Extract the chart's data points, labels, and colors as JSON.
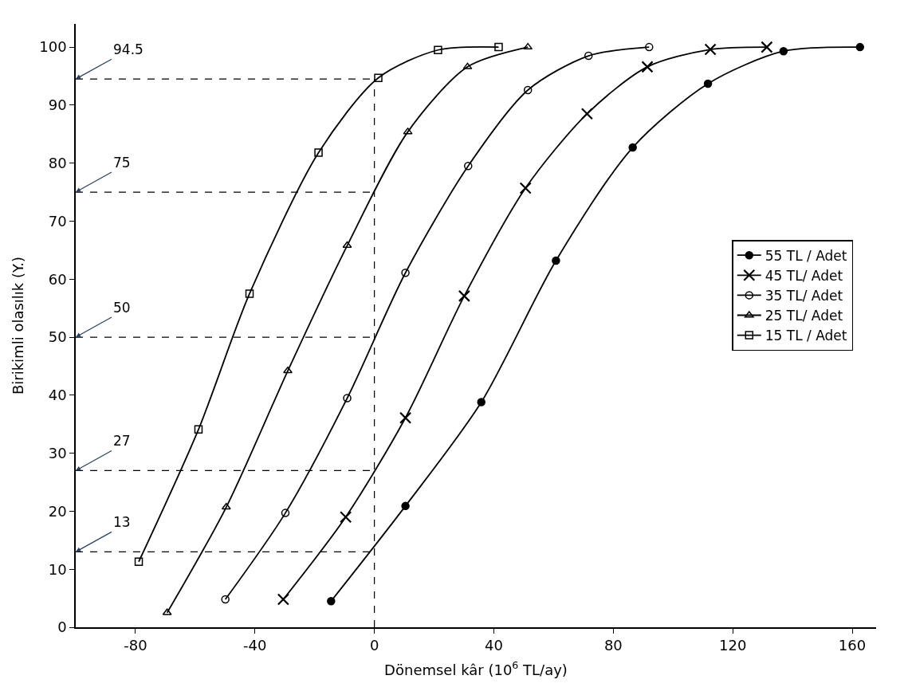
{
  "chart_data": {
    "type": "line",
    "xlabel": "Dönemsel kâr (10$^{6}$ TL/ay)",
    "ylabel": "Birikimli olasılık (Y.)",
    "xlim": [
      -100,
      168
    ],
    "xticks": [
      -80,
      -40,
      0,
      40,
      80,
      120,
      160
    ],
    "ylim": [
      0,
      104
    ],
    "yticks": [
      0,
      10,
      20,
      30,
      40,
      50,
      60,
      70,
      80,
      90,
      100
    ],
    "grid": false,
    "legend": "right",
    "line_style": "solid",
    "series": [
      {
        "name": "55 TL / Adet",
        "color": "#000000",
        "marker": "circle",
        "x": [
          -14.5,
          10.4,
          35.8,
          60.8,
          86.5,
          111.7,
          137,
          162.6
        ],
        "values": [
          4.5,
          20.9,
          38.8,
          63.2,
          82.7,
          93.7,
          99.3,
          100
        ]
      },
      {
        "name": "45 TL/ Adet",
        "color": "#000000",
        "marker": "cross",
        "x": [
          -30.5,
          -9.6,
          10.4,
          30.1,
          50.6,
          71.2,
          91.4,
          112.5,
          131.4
        ],
        "values": [
          4.8,
          19,
          36.1,
          57.1,
          75.7,
          88.5,
          96.6,
          99.6,
          100
        ]
      },
      {
        "name": "35 TL/ Adet",
        "color": "#000000",
        "marker": "circle-open",
        "x": [
          -49.9,
          -29.8,
          -9.1,
          10.4,
          31.4,
          51.4,
          71.7,
          92
        ],
        "values": [
          4.8,
          19.7,
          39.5,
          61.1,
          79.5,
          92.6,
          98.5,
          100
        ]
      },
      {
        "name": "25 TL/ Adet",
        "color": "#000000",
        "marker": "triangle-open",
        "x": [
          -69.4,
          -49.6,
          -29,
          -9.1,
          11.2,
          31.2,
          51.4
        ],
        "values": [
          2.5,
          20.7,
          44.2,
          65.8,
          85.4,
          96.6,
          100
        ]
      },
      {
        "name": "15 TL / Adet",
        "color": "#000000",
        "marker": "square-open",
        "x": [
          -78.9,
          -58.9,
          -41.8,
          -18.7,
          1.3,
          21.3,
          41.6
        ],
        "values": [
          11.3,
          34.1,
          57.5,
          81.8,
          94.7,
          99.5,
          100
        ]
      }
    ],
    "ref_lines": [
      {
        "axis": "x",
        "value": 0,
        "line_style": "dashed",
        "color": "#000000"
      },
      {
        "axis": "y",
        "value": 94.5,
        "label": "94.5",
        "line_style": "dashed",
        "color": "#000000"
      },
      {
        "axis": "y",
        "value": 75,
        "label": "75",
        "line_style": "dashed",
        "color": "#000000"
      },
      {
        "axis": "y",
        "value": 50,
        "label": "50",
        "line_style": "dashed",
        "color": "#000000"
      },
      {
        "axis": "y",
        "value": 27,
        "label": "27",
        "line_style": "dashed",
        "color": "#000000"
      },
      {
        "axis": "y",
        "value": 13,
        "label": "13",
        "line_style": "dashed",
        "color": "#000000"
      }
    ]
  }
}
